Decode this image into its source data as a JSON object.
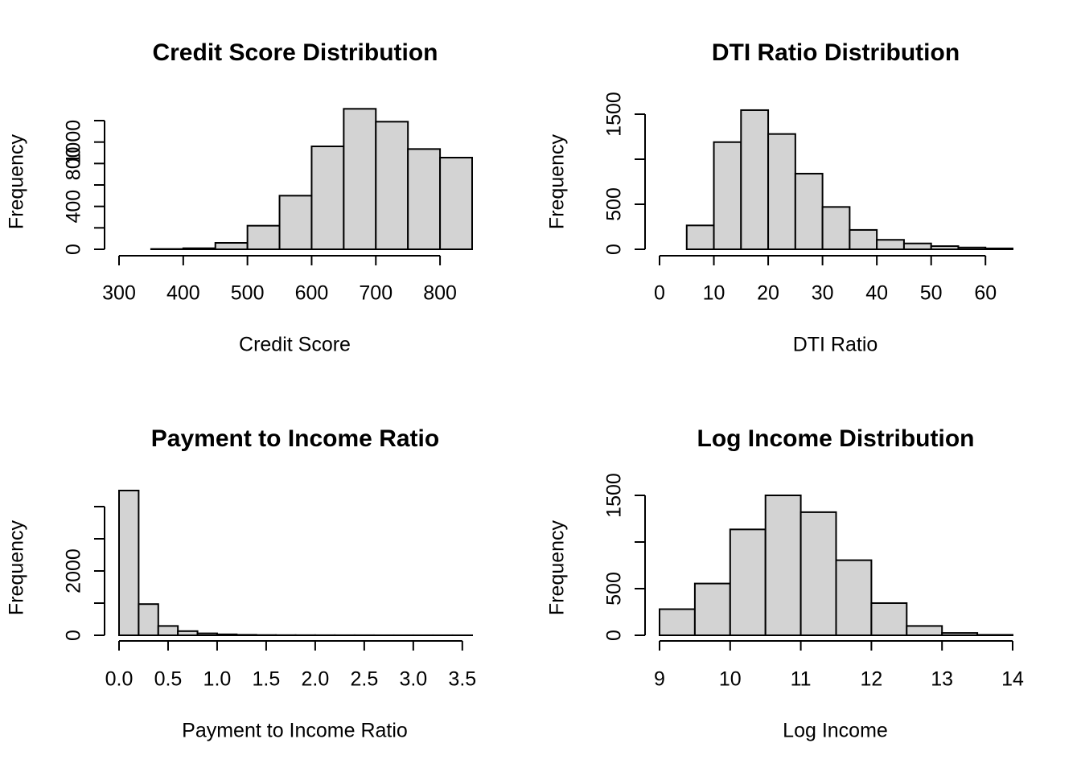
{
  "chart_data": [
    {
      "type": "bar",
      "title": "Credit Score Distribution",
      "xlabel": "Credit Score",
      "ylabel": "Frequency",
      "bin_edges": [
        350,
        400,
        450,
        500,
        550,
        600,
        650,
        700,
        750,
        800,
        850
      ],
      "values": [
        3,
        10,
        60,
        220,
        500,
        960,
        1310,
        1190,
        935,
        855
      ],
      "xticks": [
        300,
        400,
        500,
        600,
        700,
        800
      ],
      "yticks": [
        0,
        200,
        400,
        600,
        800,
        1000,
        1200
      ],
      "ytick_labels": [
        "0",
        "",
        "400",
        "",
        "800",
        "1000",
        ""
      ],
      "ylim": [
        0,
        1200
      ],
      "grid": false
    },
    {
      "type": "bar",
      "title": "DTI Ratio Distribution",
      "xlabel": "DTI Ratio",
      "ylabel": "Frequency",
      "bin_edges": [
        0,
        5,
        10,
        15,
        20,
        25,
        30,
        35,
        40,
        45,
        50,
        55,
        60,
        65
      ],
      "values": [
        0,
        265,
        1190,
        1545,
        1280,
        840,
        470,
        215,
        105,
        65,
        35,
        20,
        10
      ],
      "xticks": [
        0,
        10,
        20,
        30,
        40,
        50,
        60
      ],
      "yticks": [
        0,
        500,
        1000,
        1500
      ],
      "ytick_labels": [
        "0",
        "500",
        "",
        "1500"
      ],
      "ylim": [
        0,
        1500
      ],
      "grid": false
    },
    {
      "type": "bar",
      "title": "Payment to Income Ratio",
      "xlabel": "Payment to Income Ratio",
      "ylabel": "Frequency",
      "bin_edges": [
        0,
        0.2,
        0.4,
        0.6,
        0.8,
        1.0,
        1.2,
        1.4,
        1.6,
        1.8,
        2.0,
        2.2,
        2.4,
        2.6,
        2.8,
        3.0,
        3.2,
        3.4,
        3.6
      ],
      "values": [
        4500,
        970,
        290,
        130,
        60,
        30,
        15,
        8,
        5,
        4,
        3,
        2,
        2,
        1,
        1,
        1,
        1,
        1
      ],
      "xticks": [
        0.0,
        0.5,
        1.0,
        1.5,
        2.0,
        2.5,
        3.0,
        3.5
      ],
      "xtick_labels": [
        "0.0",
        "0.5",
        "1.0",
        "1.5",
        "2.0",
        "2.5",
        "3.0",
        "3.5"
      ],
      "yticks": [
        0,
        1000,
        2000,
        3000,
        4000
      ],
      "ytick_labels": [
        "0",
        "",
        "2000",
        "",
        ""
      ],
      "ylim": [
        0,
        4000
      ],
      "grid": false
    },
    {
      "type": "bar",
      "title": "Log Income Distribution",
      "xlabel": "Log Income",
      "ylabel": "Frequency",
      "bin_edges": [
        9,
        9.5,
        10,
        10.5,
        11,
        11.5,
        12,
        12.5,
        13,
        13.5,
        14
      ],
      "values": [
        280,
        555,
        1135,
        1500,
        1320,
        805,
        345,
        100,
        25,
        5
      ],
      "xticks": [
        9,
        10,
        11,
        12,
        13,
        14
      ],
      "yticks": [
        0,
        500,
        1000,
        1500
      ],
      "ytick_labels": [
        "0",
        "500",
        "",
        "1500"
      ],
      "ylim": [
        0,
        1500
      ],
      "grid": false
    }
  ]
}
